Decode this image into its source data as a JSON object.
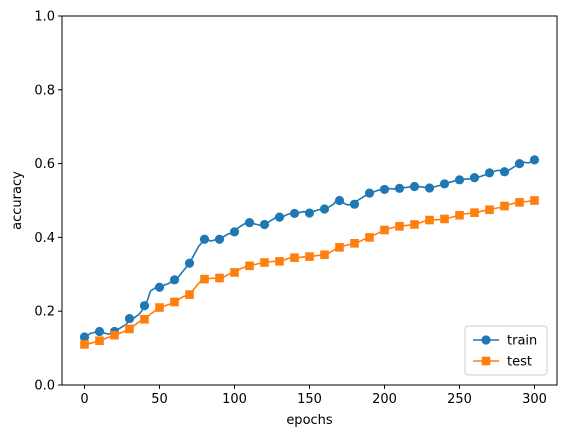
{
  "chart_data": {
    "type": "line",
    "title": "",
    "xlabel": "epochs",
    "ylabel": "accuracy",
    "xlim": [
      -15,
      315
    ],
    "ylim": [
      0,
      1.0
    ],
    "xticks": [
      0,
      50,
      100,
      150,
      200,
      250,
      300
    ],
    "yticks": [
      0.0,
      0.2,
      0.4,
      0.6,
      0.8,
      1.0
    ],
    "ytick_labels": [
      "0.0",
      "0.2",
      "0.4",
      "0.6",
      "0.8",
      "1.0"
    ],
    "grid": false,
    "legend_position": "lower-right",
    "series": [
      {
        "name": "train",
        "color": "#1f77b4",
        "marker": "circle",
        "marker_every": 10,
        "x": [
          0,
          2,
          4,
          6,
          8,
          10,
          12,
          14,
          16,
          18,
          20,
          22,
          24,
          26,
          28,
          30,
          32,
          34,
          36,
          38,
          40,
          42,
          44,
          46,
          48,
          50,
          52,
          54,
          56,
          58,
          60,
          62,
          64,
          66,
          68,
          70,
          72,
          74,
          76,
          78,
          80,
          82,
          84,
          86,
          88,
          90,
          92,
          94,
          96,
          98,
          100,
          102,
          104,
          106,
          108,
          110,
          112,
          114,
          116,
          118,
          120,
          122,
          124,
          126,
          128,
          130,
          132,
          134,
          136,
          138,
          140,
          142,
          144,
          146,
          148,
          150,
          152,
          154,
          156,
          158,
          160,
          162,
          164,
          166,
          168,
          170,
          172,
          174,
          176,
          178,
          180,
          182,
          184,
          186,
          188,
          190,
          192,
          194,
          196,
          198,
          200,
          202,
          204,
          206,
          208,
          210,
          212,
          214,
          216,
          218,
          220,
          222,
          224,
          226,
          228,
          230,
          232,
          234,
          236,
          238,
          240,
          242,
          244,
          246,
          248,
          250,
          252,
          254,
          256,
          258,
          260,
          262,
          264,
          266,
          268,
          270,
          272,
          274,
          276,
          278,
          280,
          282,
          284,
          286,
          288,
          290,
          292,
          294,
          296,
          298,
          300
        ],
        "y": [
          0.13,
          0.135,
          0.14,
          0.142,
          0.144,
          0.145,
          0.143,
          0.14,
          0.138,
          0.14,
          0.145,
          0.15,
          0.155,
          0.16,
          0.165,
          0.18,
          0.178,
          0.185,
          0.19,
          0.2,
          0.215,
          0.23,
          0.255,
          0.26,
          0.265,
          0.265,
          0.268,
          0.272,
          0.275,
          0.28,
          0.285,
          0.29,
          0.3,
          0.31,
          0.32,
          0.33,
          0.345,
          0.36,
          0.375,
          0.385,
          0.395,
          0.395,
          0.39,
          0.392,
          0.395,
          0.395,
          0.4,
          0.405,
          0.41,
          0.41,
          0.415,
          0.425,
          0.43,
          0.435,
          0.44,
          0.44,
          0.438,
          0.436,
          0.434,
          0.432,
          0.435,
          0.44,
          0.445,
          0.45,
          0.455,
          0.455,
          0.455,
          0.46,
          0.463,
          0.465,
          0.465,
          0.466,
          0.468,
          0.47,
          0.468,
          0.466,
          0.47,
          0.472,
          0.475,
          0.476,
          0.477,
          0.48,
          0.485,
          0.49,
          0.5,
          0.5,
          0.495,
          0.49,
          0.488,
          0.49,
          0.49,
          0.5,
          0.505,
          0.51,
          0.515,
          0.52,
          0.522,
          0.525,
          0.528,
          0.53,
          0.53,
          0.532,
          0.532,
          0.531,
          0.533,
          0.533,
          0.535,
          0.535,
          0.536,
          0.537,
          0.538,
          0.538,
          0.537,
          0.536,
          0.535,
          0.534,
          0.536,
          0.538,
          0.54,
          0.542,
          0.545,
          0.548,
          0.55,
          0.552,
          0.555,
          0.556,
          0.557,
          0.558,
          0.558,
          0.56,
          0.562,
          0.563,
          0.565,
          0.568,
          0.57,
          0.575,
          0.578,
          0.58,
          0.582,
          0.58,
          0.578,
          0.58,
          0.585,
          0.59,
          0.595,
          0.6,
          0.605,
          0.603,
          0.602,
          0.605,
          0.61
        ]
      },
      {
        "name": "test",
        "color": "#ff7f0e",
        "marker": "square",
        "marker_every": 10,
        "x": [
          0,
          2,
          4,
          6,
          8,
          10,
          12,
          14,
          16,
          18,
          20,
          22,
          24,
          26,
          28,
          30,
          32,
          34,
          36,
          38,
          40,
          42,
          44,
          46,
          48,
          50,
          52,
          54,
          56,
          58,
          60,
          62,
          64,
          66,
          68,
          70,
          72,
          74,
          76,
          78,
          80,
          82,
          84,
          86,
          88,
          90,
          92,
          94,
          96,
          98,
          100,
          102,
          104,
          106,
          108,
          110,
          112,
          114,
          116,
          118,
          120,
          122,
          124,
          126,
          128,
          130,
          132,
          134,
          136,
          138,
          140,
          142,
          144,
          146,
          148,
          150,
          152,
          154,
          156,
          158,
          160,
          162,
          164,
          166,
          168,
          170,
          172,
          174,
          176,
          178,
          180,
          182,
          184,
          186,
          188,
          190,
          192,
          194,
          196,
          198,
          200,
          202,
          204,
          206,
          208,
          210,
          212,
          214,
          216,
          218,
          220,
          222,
          224,
          226,
          228,
          230,
          232,
          234,
          236,
          238,
          240,
          242,
          244,
          246,
          248,
          250,
          252,
          254,
          256,
          258,
          260,
          262,
          264,
          266,
          268,
          270,
          272,
          274,
          276,
          278,
          280,
          282,
          284,
          286,
          288,
          290,
          292,
          294,
          296,
          298,
          300
        ],
        "y": [
          0.11,
          0.111,
          0.113,
          0.115,
          0.118,
          0.12,
          0.123,
          0.126,
          0.129,
          0.132,
          0.135,
          0.138,
          0.141,
          0.144,
          0.148,
          0.152,
          0.158,
          0.164,
          0.17,
          0.175,
          0.178,
          0.185,
          0.192,
          0.198,
          0.205,
          0.21,
          0.212,
          0.215,
          0.218,
          0.22,
          0.225,
          0.23,
          0.235,
          0.24,
          0.243,
          0.245,
          0.255,
          0.265,
          0.275,
          0.283,
          0.287,
          0.288,
          0.289,
          0.289,
          0.289,
          0.29,
          0.292,
          0.295,
          0.3,
          0.303,
          0.305,
          0.31,
          0.315,
          0.318,
          0.321,
          0.323,
          0.325,
          0.327,
          0.329,
          0.33,
          0.332,
          0.333,
          0.334,
          0.335,
          0.335,
          0.335,
          0.337,
          0.34,
          0.343,
          0.345,
          0.345,
          0.345,
          0.346,
          0.347,
          0.347,
          0.348,
          0.349,
          0.35,
          0.351,
          0.352,
          0.353,
          0.356,
          0.36,
          0.365,
          0.37,
          0.373,
          0.376,
          0.378,
          0.38,
          0.382,
          0.384,
          0.387,
          0.39,
          0.394,
          0.397,
          0.4,
          0.404,
          0.408,
          0.412,
          0.416,
          0.42,
          0.423,
          0.425,
          0.427,
          0.428,
          0.43,
          0.431,
          0.432,
          0.433,
          0.434,
          0.435,
          0.437,
          0.44,
          0.443,
          0.445,
          0.447,
          0.448,
          0.448,
          0.448,
          0.449,
          0.45,
          0.452,
          0.454,
          0.456,
          0.458,
          0.46,
          0.462,
          0.464,
          0.465,
          0.466,
          0.467,
          0.468,
          0.47,
          0.472,
          0.473,
          0.475,
          0.477,
          0.479,
          0.48,
          0.482,
          0.485,
          0.488,
          0.49,
          0.492,
          0.494,
          0.495,
          0.496,
          0.497,
          0.498,
          0.499,
          0.5
        ]
      }
    ]
  }
}
